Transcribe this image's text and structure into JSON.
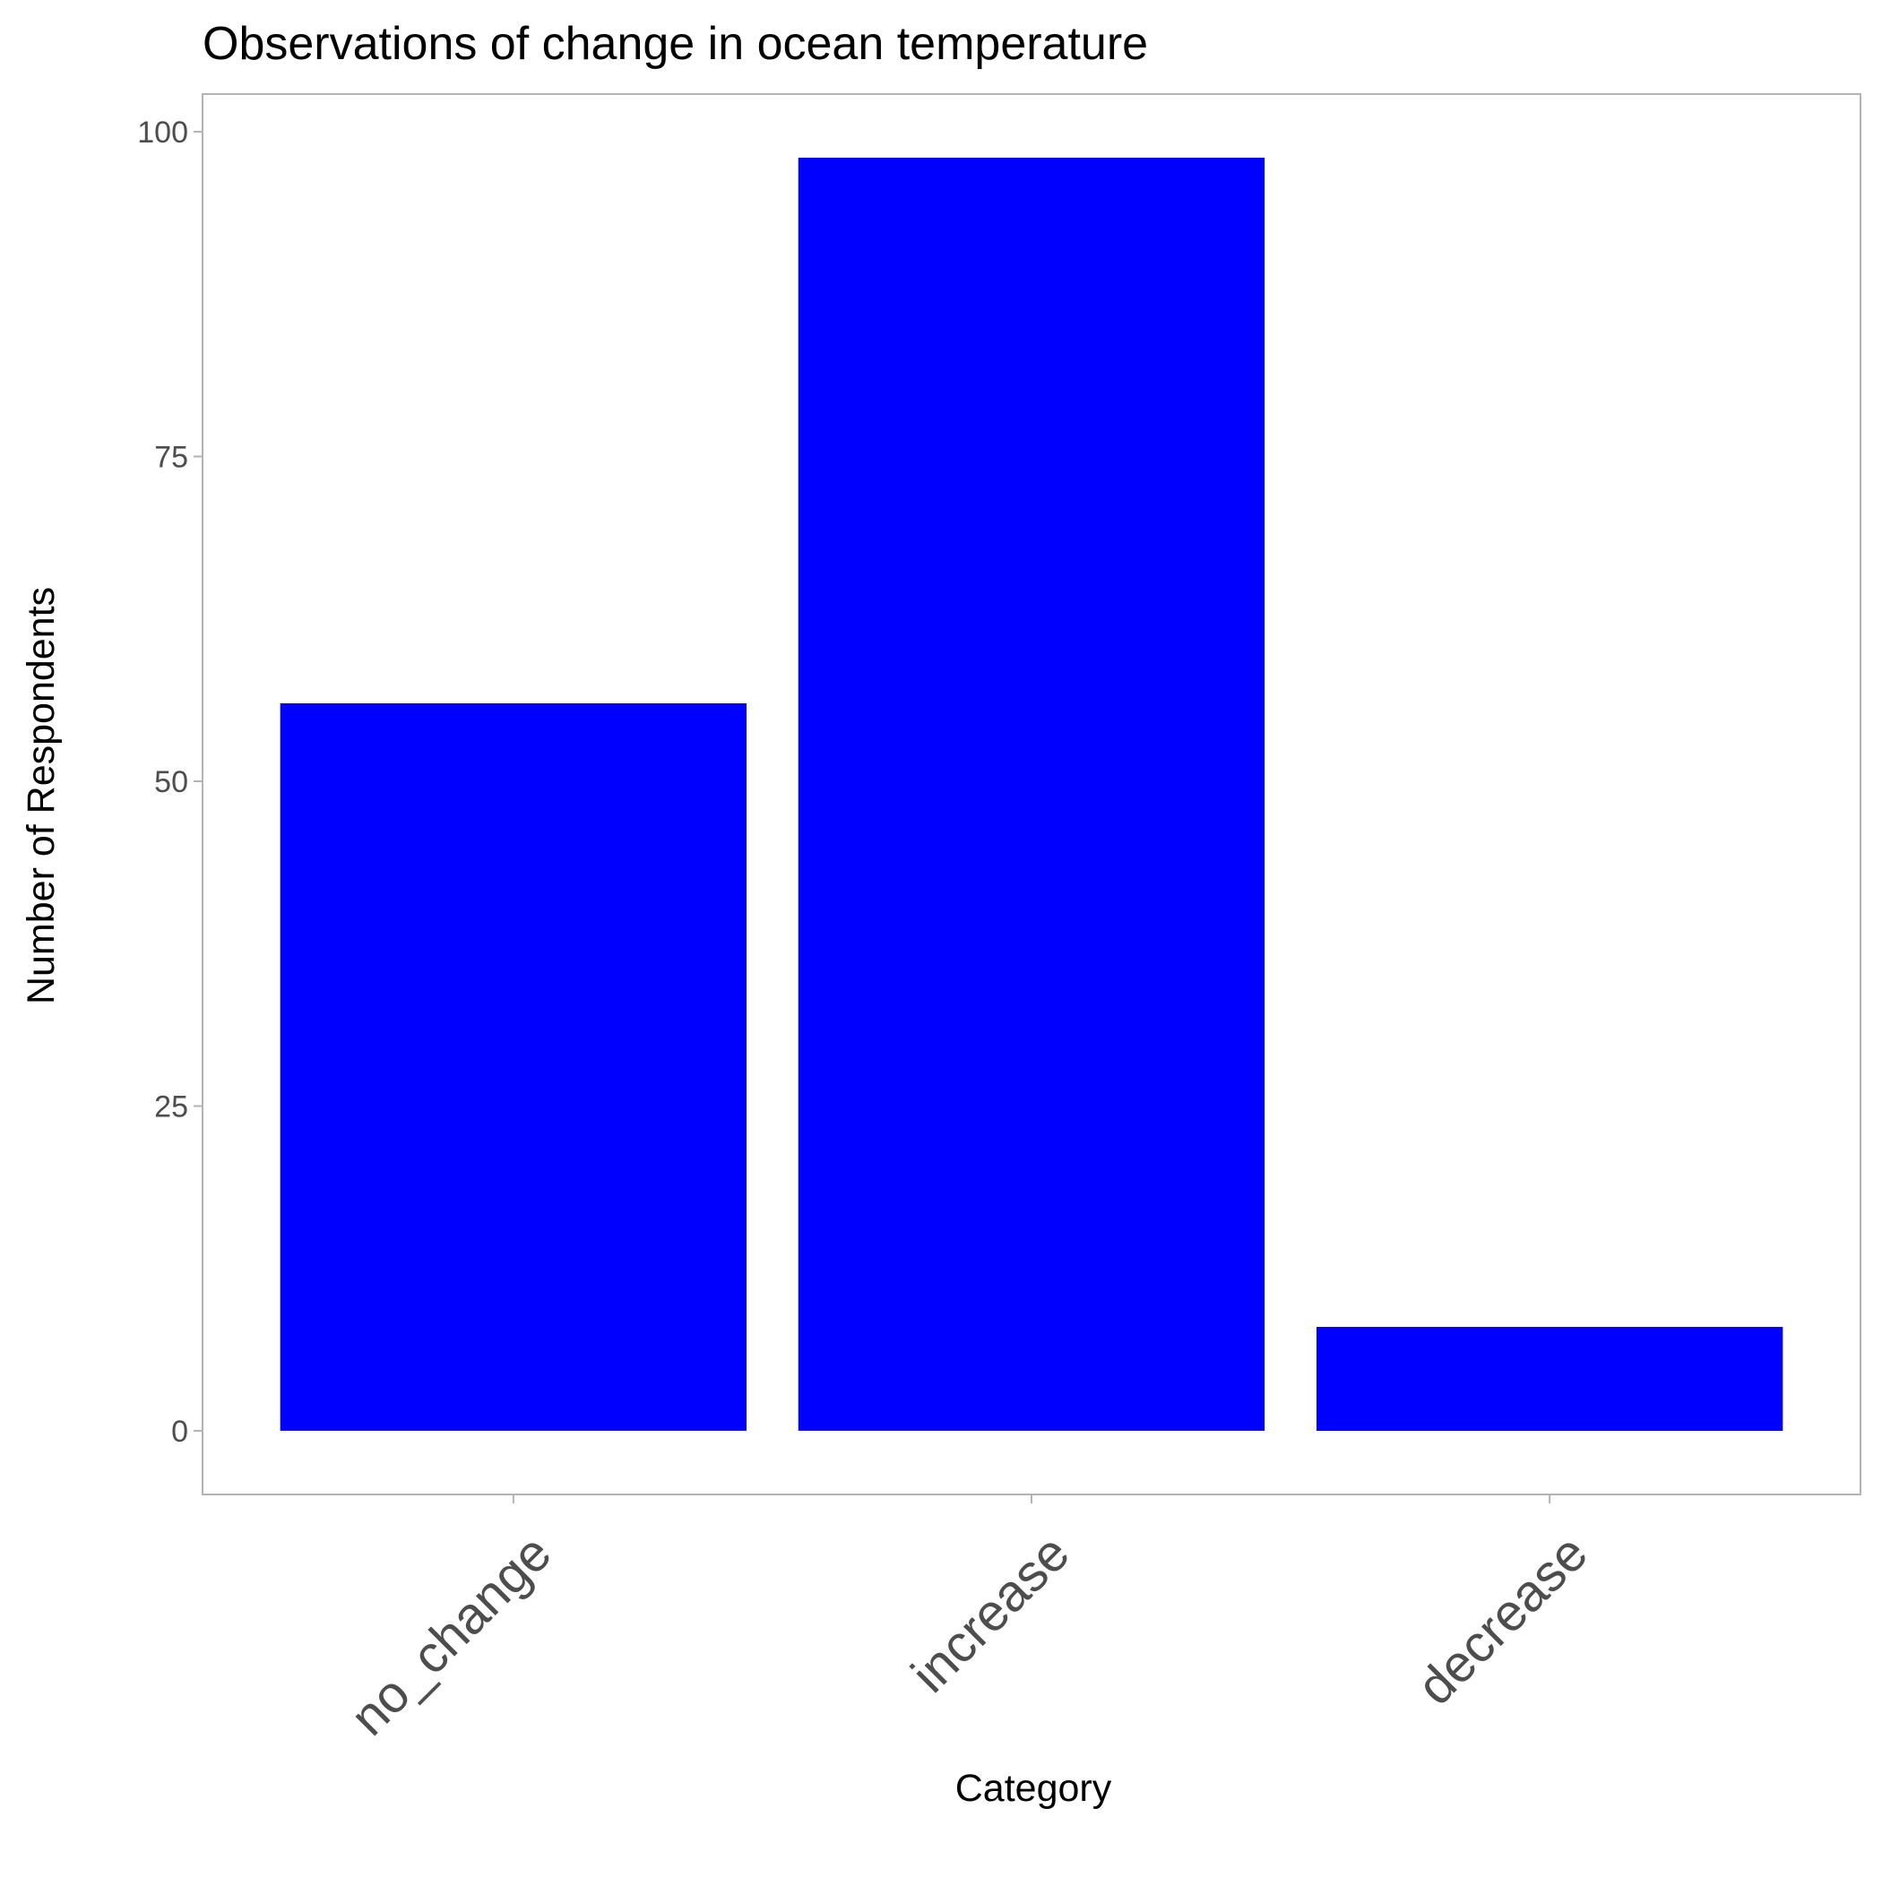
{
  "colors": {
    "bar_fill": "#0000ff",
    "panel_border": "#b3b3b3",
    "tick_mark": "#b3b3b3",
    "tick_label": "#4d4d4d",
    "text": "#000000",
    "background": "#ffffff"
  },
  "chart_data": {
    "type": "bar",
    "title": "Observations of change in ocean temperature",
    "xlabel": "Category",
    "ylabel": "Number of Respondents",
    "categories": [
      "no_change",
      "increase",
      "decrease"
    ],
    "values": [
      56,
      98,
      8
    ],
    "ylim": [
      -4.9,
      102.9
    ],
    "yticks": [
      0,
      25,
      50,
      75,
      100
    ],
    "grid": false,
    "legend": "none"
  }
}
